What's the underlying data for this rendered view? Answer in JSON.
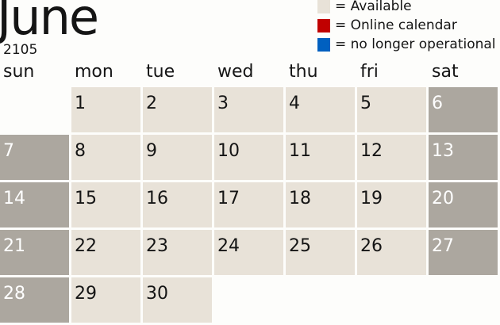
{
  "title": {
    "month": "June",
    "year": "2105"
  },
  "legend": [
    {
      "label": "= Available",
      "color": "#e8e2d8"
    },
    {
      "label": "= Online calendar",
      "color": "#c00000"
    },
    {
      "label": "= no longer operational",
      "color": "#0060c0"
    }
  ],
  "weekdays": [
    "sun",
    "mon",
    "tue",
    "wed",
    "thu",
    "fri",
    "sat"
  ],
  "colors": {
    "available": "#e8e2d8",
    "weekend": "#aca79f"
  },
  "weeks": [
    [
      null,
      "1",
      "2",
      "3",
      "4",
      "5",
      "6"
    ],
    [
      "7",
      "8",
      "9",
      "10",
      "11",
      "12",
      "13"
    ],
    [
      "14",
      "15",
      "16",
      "17",
      "18",
      "19",
      "20"
    ],
    [
      "21",
      "22",
      "23",
      "24",
      "25",
      "26",
      "27"
    ],
    [
      "28",
      "29",
      "30",
      null,
      null,
      null,
      null
    ]
  ]
}
